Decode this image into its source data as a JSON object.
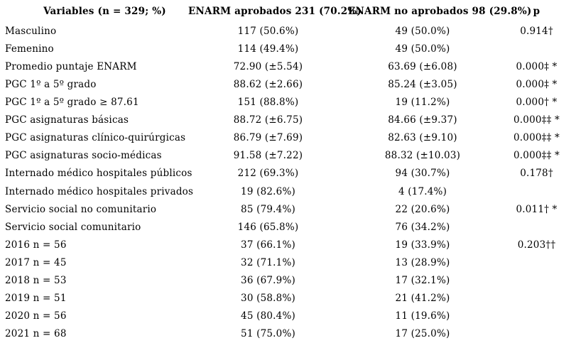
{
  "table": {
    "headers": [
      "Variables (n = 329; %)",
      "ENARM aprobados 231 (70.2%)",
      "ENARM no aprobados 98 (29.8%)",
      "p"
    ],
    "rows": [
      {
        "variable": "Masculino",
        "aprobados": "117 (50.6%)",
        "no_aprobados": "49 (50.0%)",
        "p": "0.914†"
      },
      {
        "variable": "Femenino",
        "aprobados": "114 (49.4%)",
        "no_aprobados": "49 (50.0%)",
        "p": ""
      },
      {
        "variable": "Promedio puntaje ENARM",
        "aprobados": "72.90 (±5.54)",
        "no_aprobados": "63.69 (±6.08)",
        "p": "0.000‡ *"
      },
      {
        "variable": "PGC 1º a 5º grado",
        "aprobados": "88.62 (±2.66)",
        "no_aprobados": "85.24 (±3.05)",
        "p": "0.000‡ *"
      },
      {
        "variable": "PGC 1º a 5º grado ≥ 87.61",
        "aprobados": "151 (88.8%)",
        "no_aprobados": "19 (11.2%)",
        "p": "0.000† *"
      },
      {
        "variable": "PGC asignaturas básicas",
        "aprobados": "88.72 (±6.75)",
        "no_aprobados": "84.66 (±9.37)",
        "p": "0.000‡‡ *"
      },
      {
        "variable": "PGC asignaturas clínico-quirúrgicas",
        "aprobados": "86.79 (±7.69)",
        "no_aprobados": "82.63 (±9.10)",
        "p": "0.000‡‡ *"
      },
      {
        "variable": "PGC asignaturas socio-médicas",
        "aprobados": "91.58 (±7.22)",
        "no_aprobados": "88.32 (±10.03)",
        "p": "0.000‡‡ *"
      },
      {
        "variable": "Internado médico hospitales públicos",
        "aprobados": "212 (69.3%)",
        "no_aprobados": "94 (30.7%)",
        "p": "0.178†"
      },
      {
        "variable": "Internado médico hospitales privados",
        "aprobados": "19 (82.6%)",
        "no_aprobados": "4 (17.4%)",
        "p": ""
      },
      {
        "variable": "Servicio social no comunitario",
        "aprobados": "85 (79.4%)",
        "no_aprobados": "22 (20.6%)",
        "p": "0.011† *"
      },
      {
        "variable": "Servicio social comunitario",
        "aprobados": "146 (65.8%)",
        "no_aprobados": "76 (34.2%)",
        "p": ""
      },
      {
        "variable": "2016 n = 56",
        "aprobados": "37 (66.1%)",
        "no_aprobados": "19 (33.9%)",
        "p": "0.203††"
      },
      {
        "variable": "2017 n = 45",
        "aprobados": "32 (71.1%)",
        "no_aprobados": "13 (28.9%)",
        "p": ""
      },
      {
        "variable": "2018 n = 53",
        "aprobados": "36 (67.9%)",
        "no_aprobados": "17 (32.1%)",
        "p": ""
      },
      {
        "variable": "2019 n = 51",
        "aprobados": "30 (58.8%)",
        "no_aprobados": "21 (41.2%)",
        "p": ""
      },
      {
        "variable": "2020 n = 56",
        "aprobados": "45 (80.4%)",
        "no_aprobados": "11 (19.6%)",
        "p": ""
      },
      {
        "variable": "2021 n = 68",
        "aprobados": "51 (75.0%)",
        "no_aprobados": "17 (25.0%)",
        "p": ""
      }
    ]
  }
}
